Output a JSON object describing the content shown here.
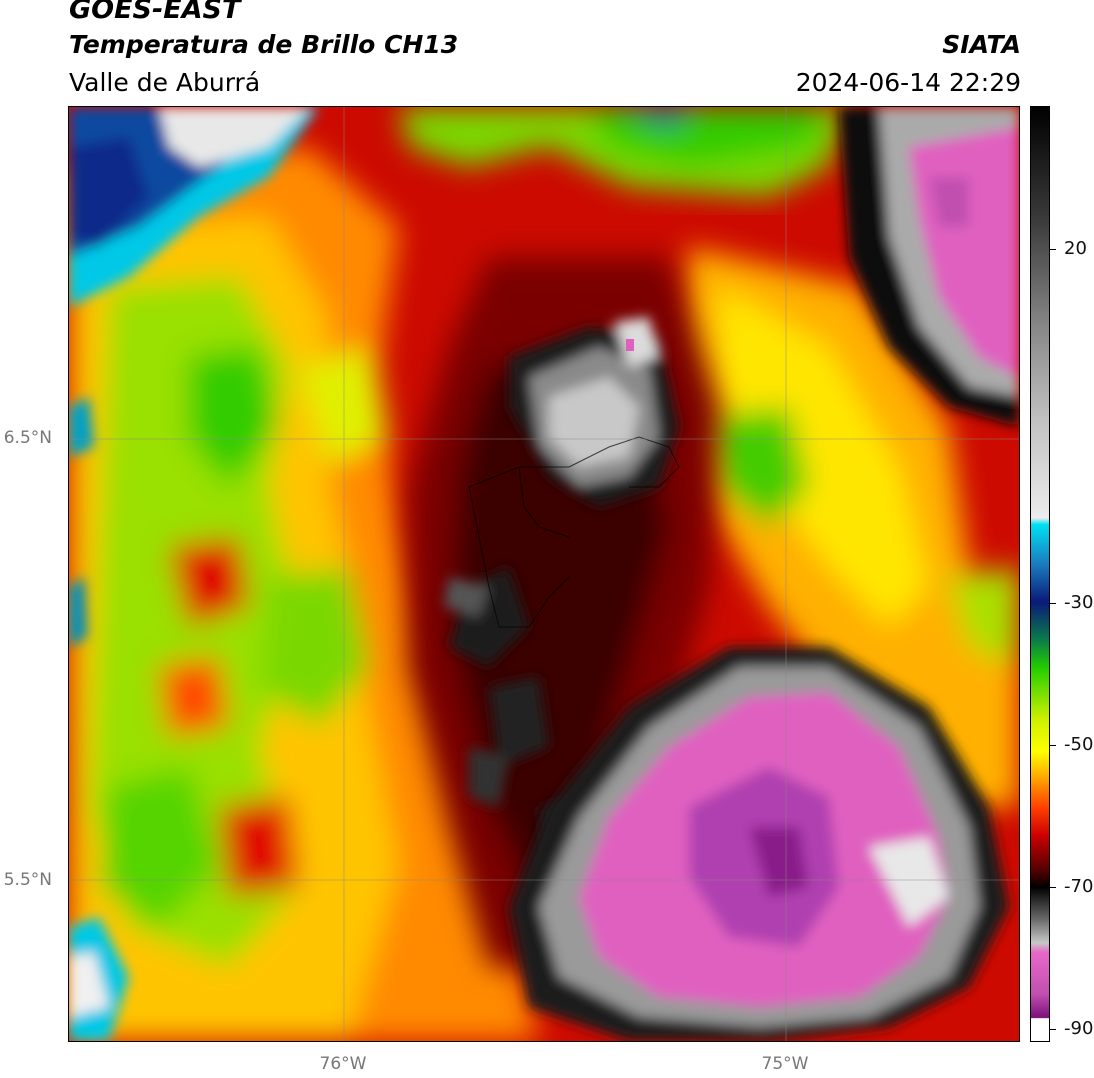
{
  "header": {
    "satellite": "GOES-EAST",
    "product": "Temperatura de Brillo CH13",
    "region": "Valle de Aburrá",
    "agency": "SIATA",
    "datetime": "2024-06-14 22:29"
  },
  "map": {
    "lat_labels": [
      "6.5°N",
      "5.5°N"
    ],
    "lon_labels": [
      "76°W",
      "75°W"
    ]
  },
  "colorbar": {
    "ticks": [
      "20",
      "-30",
      "-50",
      "-70",
      "-90"
    ],
    "range": [
      -92,
      33
    ],
    "colors": {
      "warm_gray": "#8a8a8a",
      "cyan": "#00c8e6",
      "dark_blue": "#0a2a8a",
      "green": "#33cc00",
      "yellow": "#ffff00",
      "orange": "#ff8c00",
      "red": "#e00000",
      "dark_red": "#5a0000",
      "black": "#000000",
      "magenta": "#e060c0",
      "purple": "#8a1a8a"
    }
  }
}
